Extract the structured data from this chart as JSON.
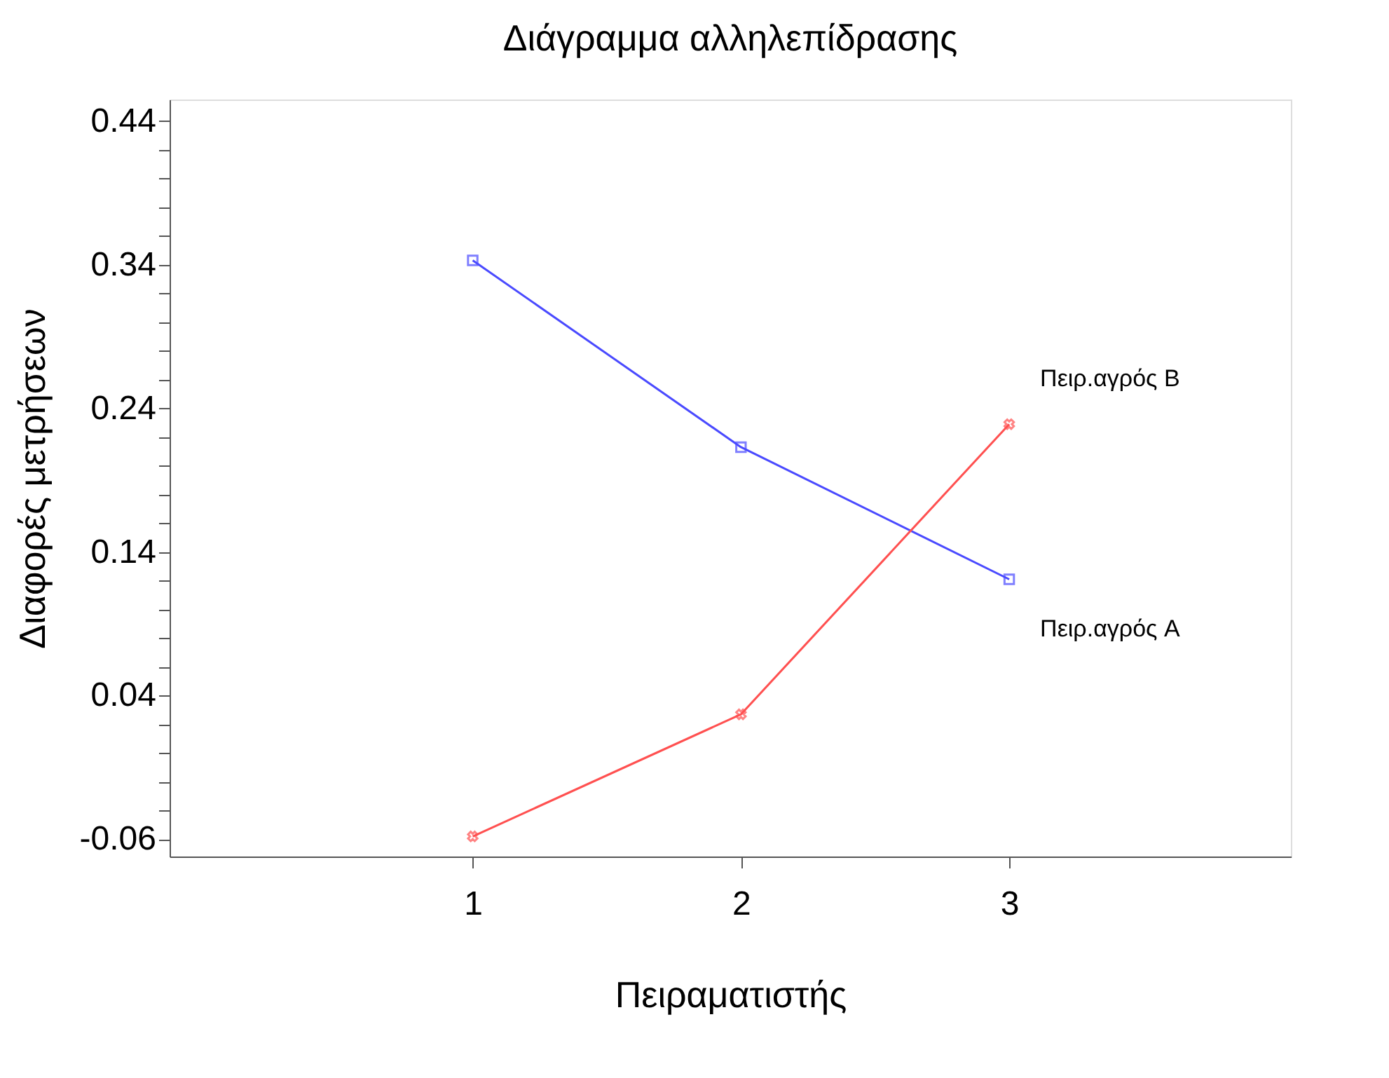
{
  "chart_data": {
    "type": "line",
    "title": "Διάγραμμα αλληλεπίδρασης",
    "xlabel": "Πειραματιστής",
    "ylabel": "Διαφορές μετρήσεων",
    "x": [
      1,
      2,
      3
    ],
    "series": [
      {
        "name": "Πειρ.αγρός A",
        "color": "#4a4aff",
        "marker": "square",
        "values": [
          0.343,
          0.213,
          0.121
        ]
      },
      {
        "name": "Πειρ.αγρός B",
        "color": "#ff5050",
        "marker": "cross",
        "values": [
          -0.058,
          0.027,
          0.229
        ]
      }
    ],
    "xlim": [
      -0.13,
      4.05
    ],
    "xticks": [
      1,
      2,
      3
    ],
    "ylim": [
      -0.072,
      0.455
    ],
    "yticks": [
      -0.06,
      {
        "value": -0.04,
        "label": null
      },
      {
        "value": -0.02,
        "label": null
      },
      {
        "value": 0.0,
        "label": null
      },
      {
        "value": 0.02,
        "label": null
      },
      0.04,
      {
        "value": 0.06,
        "label": null
      },
      {
        "value": 0.08,
        "label": null
      },
      {
        "value": 0.1,
        "label": null
      },
      {
        "value": 0.12,
        "label": null
      },
      0.14,
      {
        "value": 0.16,
        "label": null
      },
      {
        "value": 0.18,
        "label": null
      },
      {
        "value": 0.2,
        "label": null
      },
      {
        "value": 0.22,
        "label": null
      },
      0.24,
      {
        "value": 0.26,
        "label": null
      },
      {
        "value": 0.28,
        "label": null
      },
      {
        "value": 0.3,
        "label": null
      },
      {
        "value": 0.32,
        "label": null
      },
      0.34,
      {
        "value": 0.36,
        "label": null
      },
      {
        "value": 0.38,
        "label": null
      },
      {
        "value": 0.4,
        "label": null
      },
      {
        "value": 0.42,
        "label": null
      },
      0.44
    ],
    "grid": false,
    "line_style": "solid"
  }
}
